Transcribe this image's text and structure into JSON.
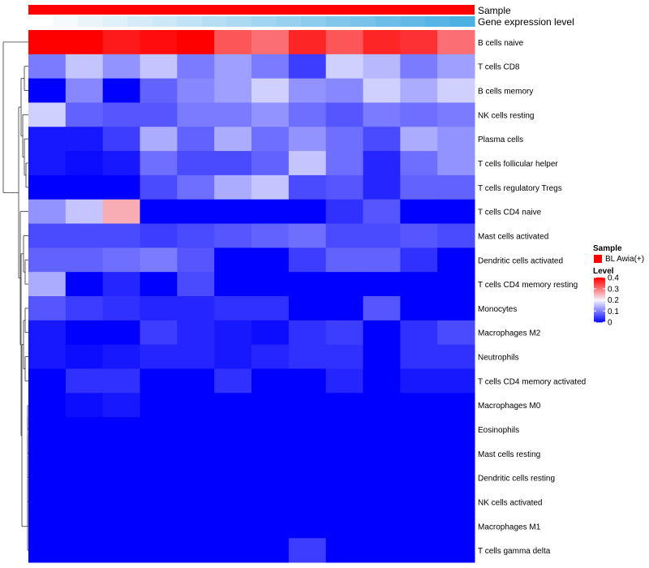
{
  "chart_data": {
    "type": "heatmap",
    "title": "",
    "annotation_tracks": [
      {
        "name": "Sample",
        "color": "#FF0000"
      },
      {
        "name": "Gene expression level",
        "colors": [
          "#FFFFFF",
          "#F5FAFD",
          "#EAF5FB",
          "#E0F1FA",
          "#D5ECF8",
          "#CBE8F7",
          "#C0E3F5",
          "#B6DEF3",
          "#ABDAF2",
          "#A1D5F0",
          "#96D1EE",
          "#8CCCED",
          "#81C7EB",
          "#77C3EA",
          "#6CBEE8",
          "#62B9E6",
          "#57B5E5",
          "#4DB0E3"
        ]
      }
    ],
    "columns": 12,
    "rows": [
      "B cells naive",
      "T cells CD8",
      "B cells memory",
      "NK cells resting",
      "Plasma cells",
      "T cells follicular helper",
      "T cells regulatory  Tregs",
      "T cells CD4 naive",
      "Mast cells activated",
      "Dendritic cells activated",
      "T cells CD4 memory resting",
      "Monocytes",
      "Macrophages M2",
      "Neutrophils",
      "T cells CD4 memory activated",
      "Macrophages M0",
      "Eosinophils",
      "Mast cells resting",
      "Dendritic cells resting",
      "NK cells activated",
      "Macrophages M1",
      "T cells gamma delta"
    ],
    "values": [
      [
        0.4,
        0.4,
        0.38,
        0.39,
        0.41,
        0.33,
        0.31,
        0.37,
        0.33,
        0.37,
        0.36,
        0.31
      ],
      [
        0.1,
        0.16,
        0.12,
        0.16,
        0.1,
        0.13,
        0.1,
        0.05,
        0.17,
        0.15,
        0.1,
        0.13
      ],
      [
        0.0,
        0.11,
        0.0,
        0.08,
        0.11,
        0.13,
        0.17,
        0.12,
        0.11,
        0.17,
        0.14,
        0.17
      ],
      [
        0.17,
        0.08,
        0.07,
        0.07,
        0.1,
        0.1,
        0.12,
        0.09,
        0.07,
        0.1,
        0.09,
        0.1
      ],
      [
        0.02,
        0.02,
        0.05,
        0.14,
        0.08,
        0.14,
        0.09,
        0.12,
        0.09,
        0.06,
        0.14,
        0.12
      ],
      [
        0.02,
        0.01,
        0.02,
        0.09,
        0.06,
        0.06,
        0.08,
        0.16,
        0.09,
        0.03,
        0.09,
        0.12
      ],
      [
        0.0,
        0.0,
        0.0,
        0.06,
        0.09,
        0.14,
        0.16,
        0.06,
        0.07,
        0.03,
        0.08,
        0.08
      ],
      [
        0.12,
        0.16,
        0.26,
        0.0,
        0.0,
        0.0,
        0.0,
        0.0,
        0.04,
        0.07,
        0.0,
        0.0
      ],
      [
        0.06,
        0.06,
        0.06,
        0.05,
        0.06,
        0.07,
        0.08,
        0.09,
        0.06,
        0.06,
        0.07,
        0.06
      ],
      [
        0.08,
        0.08,
        0.09,
        0.1,
        0.07,
        0.0,
        0.0,
        0.05,
        0.08,
        0.08,
        0.04,
        0.0
      ],
      [
        0.14,
        0.0,
        0.03,
        0.0,
        0.06,
        0.0,
        0.0,
        0.0,
        0.0,
        0.0,
        0.0,
        0.0
      ],
      [
        0.07,
        0.05,
        0.04,
        0.03,
        0.03,
        0.04,
        0.04,
        0.0,
        0.0,
        0.07,
        0.0,
        0.0
      ],
      [
        0.02,
        0.0,
        0.0,
        0.05,
        0.03,
        0.02,
        0.01,
        0.04,
        0.05,
        0.0,
        0.04,
        0.06
      ],
      [
        0.02,
        0.01,
        0.02,
        0.03,
        0.03,
        0.02,
        0.03,
        0.04,
        0.04,
        0.0,
        0.04,
        0.04
      ],
      [
        0.0,
        0.04,
        0.04,
        0.0,
        0.0,
        0.04,
        0.0,
        0.0,
        0.03,
        0.0,
        0.02,
        0.02
      ],
      [
        0.0,
        0.01,
        0.02,
        0.0,
        0.0,
        0.0,
        0.0,
        0.0,
        0.0,
        0.0,
        0.0,
        0.0
      ],
      [
        0.0,
        0.0,
        0.0,
        0.0,
        0.0,
        0.0,
        0.0,
        0.0,
        0.0,
        0.0,
        0.0,
        0.0
      ],
      [
        0.0,
        0.0,
        0.0,
        0.0,
        0.0,
        0.0,
        0.0,
        0.0,
        0.0,
        0.0,
        0.0,
        0.0
      ],
      [
        0.0,
        0.0,
        0.0,
        0.0,
        0.0,
        0.0,
        0.0,
        0.0,
        0.0,
        0.0,
        0.0,
        0.0
      ],
      [
        0.0,
        0.0,
        0.0,
        0.0,
        0.0,
        0.0,
        0.0,
        0.0,
        0.0,
        0.0,
        0.0,
        0.0
      ],
      [
        0.0,
        0.0,
        0.0,
        0.0,
        0.0,
        0.0,
        0.0,
        0.0,
        0.0,
        0.0,
        0.0,
        0.0
      ],
      [
        0.0,
        0.0,
        0.0,
        0.0,
        0.0,
        0.0,
        0.0,
        0.05,
        0.0,
        0.0,
        0.0,
        0.0
      ]
    ],
    "color_scale": {
      "low": "#0000FF",
      "mid": "#F5F5FF",
      "high": "#FF0000",
      "midpoint": 0.2,
      "range": [
        0,
        0.4
      ]
    },
    "legend": {
      "position": "right",
      "sample_title": "Sample",
      "sample_entry": "BL Awia(+)",
      "sample_color": "#FF0000",
      "level_title": "Level",
      "ticks": [
        "0.4",
        "0.3",
        "0.2",
        "0.1",
        "0"
      ],
      "tick_values": [
        0.4,
        0.3,
        0.2,
        0.1,
        0
      ]
    }
  }
}
